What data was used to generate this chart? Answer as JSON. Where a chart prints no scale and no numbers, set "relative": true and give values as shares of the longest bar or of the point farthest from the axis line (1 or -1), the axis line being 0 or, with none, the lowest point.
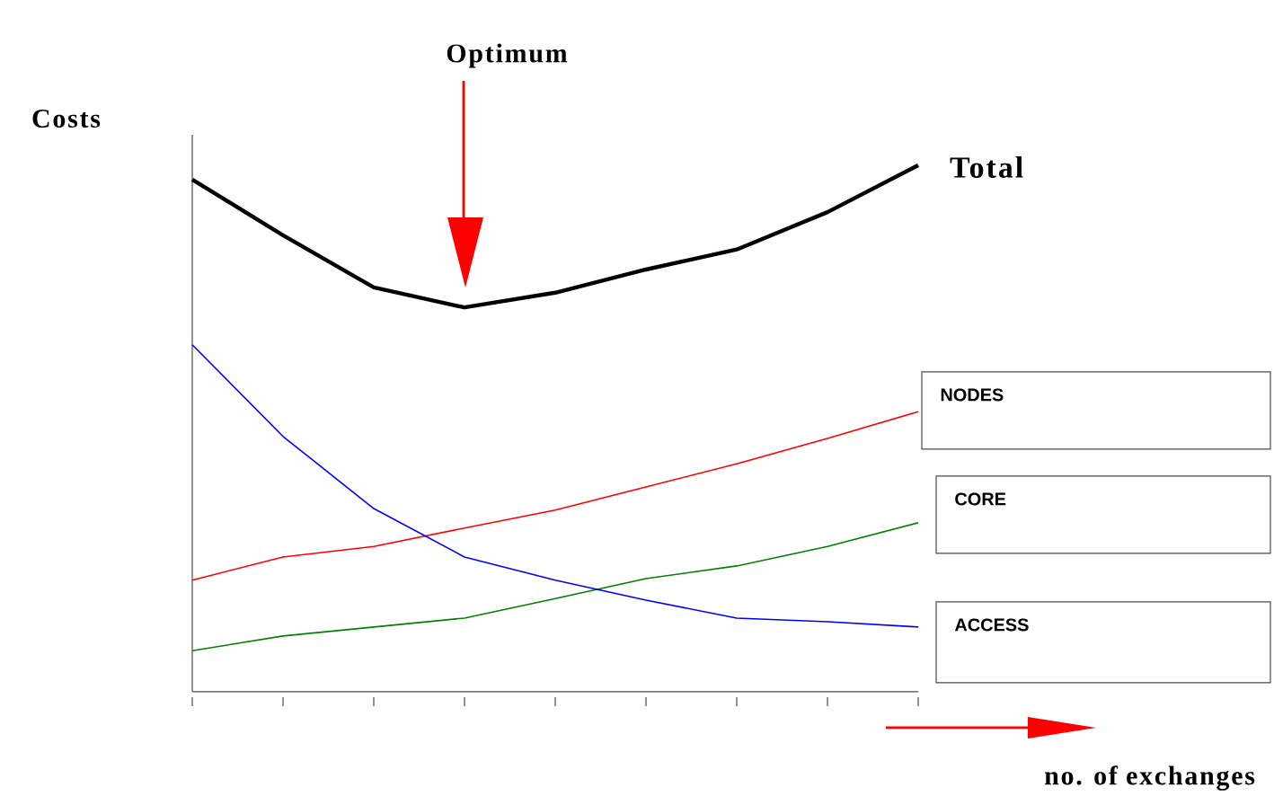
{
  "chart_data": {
    "type": "line",
    "relative": true,
    "ylabel": "Costs",
    "annotations": [
      "Optimum",
      "no. of exchanges"
    ],
    "grid": false,
    "categories": [
      null,
      null,
      null,
      null,
      null,
      null,
      null,
      null,
      null
    ],
    "series": [
      {
        "name": "Total",
        "color": "#000000",
        "values": [
          0.973,
          0.867,
          0.768,
          0.73,
          0.758,
          0.802,
          0.84,
          0.911,
          1.0
        ]
      },
      {
        "name": "NODES",
        "color": "#ff0000",
        "values": [
          0.212,
          0.256,
          0.276,
          0.311,
          0.345,
          0.389,
          0.433,
          0.481,
          0.532
        ]
      },
      {
        "name": "CORE",
        "color": "#008000",
        "values": [
          0.078,
          0.106,
          0.123,
          0.14,
          0.177,
          0.215,
          0.239,
          0.276,
          0.321
        ]
      },
      {
        "name": "ACCESS",
        "color": "#0000ff",
        "values": [
          0.659,
          0.485,
          0.348,
          0.256,
          0.212,
          0.174,
          0.14,
          0.133,
          0.123
        ]
      }
    ]
  }
}
